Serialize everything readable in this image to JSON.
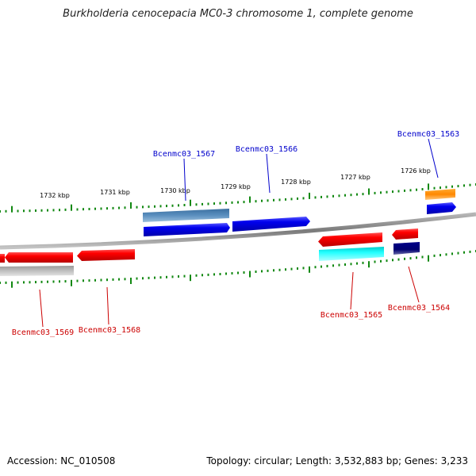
{
  "title": "Burkholderia cenocepacia MC0-3 chromosome 1, complete genome",
  "footer": {
    "accession": "Accession: NC_010508",
    "summary": "Topology: circular; Length: 3,532,883 bp; Genes: 3,233"
  },
  "colors": {
    "backbone": "#8a8a8a",
    "tick": "#118811",
    "forward_label": "#0000cc",
    "reverse_label": "#cc0000"
  },
  "scale_labels": [
    "1732 kbp",
    "1731 kbp",
    "1730 kbp",
    "1729 kbp",
    "1728 kbp",
    "1727 kbp",
    "1726 kbp"
  ],
  "gene_labels": {
    "forward": [
      "Bcenmc03_1567",
      "Bcenmc03_1566",
      "Bcenmc03_1563"
    ],
    "reverse": [
      "Bcenmc03_1569",
      "Bcenmc03_1568",
      "Bcenmc03_1565",
      "Bcenmc03_1564"
    ]
  }
}
